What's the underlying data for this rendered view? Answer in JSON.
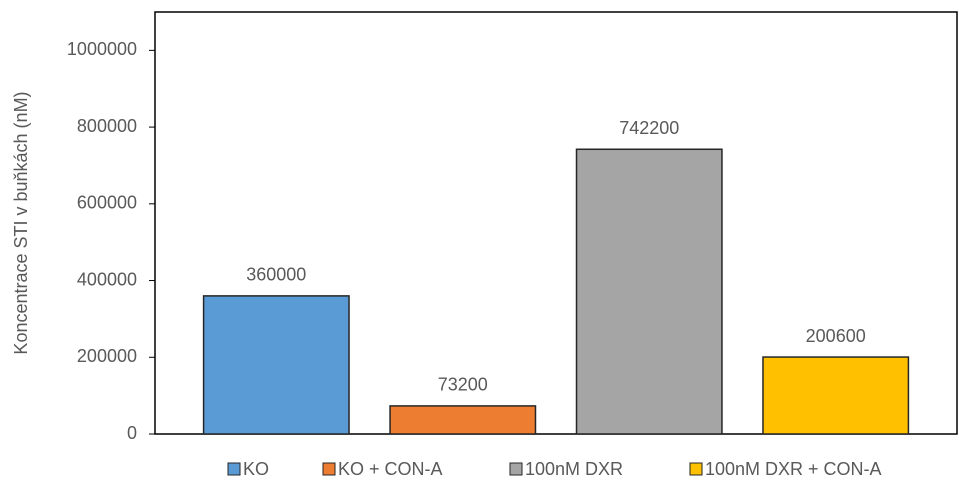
{
  "chart_data": {
    "type": "bar",
    "y_label": "Koncentrace STI v buňkách (nM)",
    "categories": [
      null
    ],
    "series": [
      {
        "name": "KO",
        "color": "#5b9bd5",
        "values": [
          360000
        ]
      },
      {
        "name": "KO + CON-A",
        "color": "#ed7d31",
        "values": [
          73200
        ]
      },
      {
        "name": "100nM DXR",
        "color": "#a5a5a5",
        "values": [
          742200
        ]
      },
      {
        "name": "100nM DXR + CON-A",
        "color": "#ffc000",
        "values": [
          200600
        ]
      }
    ],
    "ylim": [
      0,
      1100000
    ],
    "yticks": [
      0,
      200000,
      400000,
      600000,
      800000,
      1000000
    ],
    "grid": false,
    "legend": "bottom",
    "data_labels": true
  }
}
